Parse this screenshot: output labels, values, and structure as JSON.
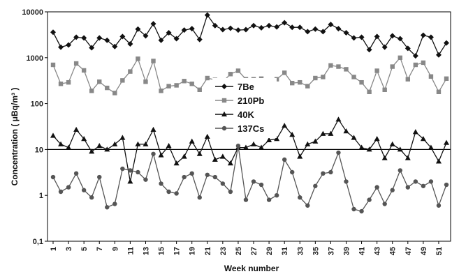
{
  "chart_data": {
    "type": "line",
    "xlabel": "Week number",
    "ylabel": "Concentration ( μBq/m³ )",
    "yscale": "log",
    "ylim": [
      0.1,
      10000
    ],
    "yticks": [
      {
        "value": 10000,
        "label": "10000"
      },
      {
        "value": 1000,
        "label": "1000"
      },
      {
        "value": 100,
        "label": "100"
      },
      {
        "value": 10,
        "label": "10"
      },
      {
        "value": 1,
        "label": "1"
      },
      {
        "value": 0.1,
        "label": "0,1"
      }
    ],
    "xlim": [
      1,
      52
    ],
    "xticks": [
      1,
      3,
      5,
      7,
      9,
      11,
      13,
      15,
      17,
      19,
      21,
      23,
      25,
      27,
      29,
      31,
      33,
      35,
      37,
      39,
      41,
      43,
      45,
      47,
      49,
      51
    ],
    "reference_line": 10,
    "grid": false,
    "legend_position": "center",
    "series": [
      {
        "name": "7Be",
        "color": "#111111",
        "marker": "diamond",
        "values": [
          3600,
          1700,
          1900,
          2800,
          2700,
          1650,
          2700,
          2400,
          1750,
          2900,
          2000,
          4200,
          3000,
          5500,
          2400,
          3500,
          2600,
          4000,
          4300,
          2500,
          8500,
          5000,
          4100,
          4400,
          4000,
          4100,
          5000,
          4500,
          5000,
          4700,
          5800,
          4600,
          4600,
          3700,
          4200,
          3700,
          5300,
          4300,
          3500,
          2700,
          2800,
          1500,
          2900,
          1700,
          3000,
          2600,
          1600,
          1100,
          3100,
          2800,
          1150,
          2100
        ]
      },
      {
        "name": "210Pb",
        "color": "#888888",
        "marker": "square",
        "values": [
          700,
          270,
          290,
          750,
          530,
          190,
          300,
          220,
          170,
          320,
          500,
          950,
          300,
          850,
          190,
          240,
          250,
          310,
          270,
          200,
          360,
          330,
          300,
          440,
          520,
          340,
          340,
          350,
          320,
          340,
          470,
          280,
          290,
          240,
          360,
          380,
          680,
          640,
          560,
          380,
          290,
          180,
          520,
          200,
          640,
          1000,
          340,
          700,
          780,
          390,
          180,
          350
        ]
      },
      {
        "name": "40K",
        "color": "#111111",
        "marker": "triangle",
        "values": [
          20,
          13,
          11,
          27,
          17,
          9,
          12,
          10,
          13,
          18,
          2,
          13,
          13,
          27,
          7.5,
          12,
          5,
          7,
          15,
          8,
          19,
          6,
          7,
          5,
          11,
          11,
          13,
          11,
          16,
          17,
          33,
          21,
          7,
          13,
          15,
          22,
          22,
          45,
          25,
          18,
          11,
          10,
          17,
          6.5,
          13,
          10,
          6.5,
          24,
          17,
          11,
          5.5,
          14
        ]
      },
      {
        "name": "137Cs",
        "color": "#555555",
        "marker": "circle",
        "values": [
          2.5,
          1.2,
          1.5,
          3.0,
          1.3,
          0.9,
          2.5,
          0.55,
          0.65,
          3.8,
          3.5,
          3.2,
          2.2,
          8.0,
          1.8,
          1.2,
          1.1,
          2.5,
          3.0,
          0.9,
          2.8,
          2.5,
          1.8,
          1.2,
          12,
          0.8,
          2.0,
          1.7,
          0.8,
          1.0,
          6.0,
          3.2,
          0.9,
          0.6,
          1.6,
          3.0,
          3.2,
          8.5,
          2.0,
          0.5,
          0.45,
          0.8,
          1.5,
          0.65,
          1.3,
          3.5,
          1.5,
          2.0,
          1.6,
          2.0,
          0.6,
          1.7
        ]
      }
    ]
  }
}
